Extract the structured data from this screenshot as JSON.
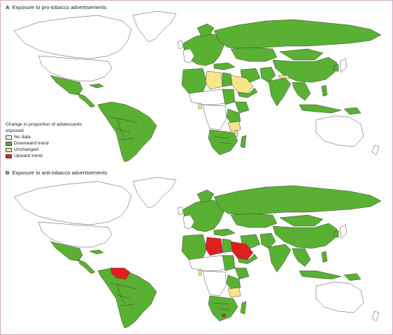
{
  "panels": [
    {
      "letter": "A",
      "title": "Exposure to pro-tobacco advertisements"
    },
    {
      "letter": "B",
      "title": "Exposure to anti-tobacco advertisements"
    }
  ],
  "legend": {
    "title": "Change in proportion of adolescents exposed",
    "items": [
      {
        "label": "No data",
        "color": "#ffffff"
      },
      {
        "label": "Downward trend",
        "color": "#5ab032"
      },
      {
        "label": "Unchanged",
        "color": "#f5e68a"
      },
      {
        "label": "Upward trend",
        "color": "#e02020"
      }
    ]
  },
  "map_data": {
    "pro_tobacco": {
      "upward_trend": [],
      "unchanged": [
        "Libya",
        "Saudi Arabia",
        "Nepal",
        "Tanzania",
        "Malawi",
        "Togo"
      ],
      "downward_trend": [
        "Russia",
        "Kazakhstan",
        "Mongolia",
        "China",
        "India",
        "Pakistan",
        "Afghanistan",
        "Iran",
        "Turkey",
        "Egypt",
        "Algeria",
        "Morocco",
        "Tunisia",
        "Mauritania",
        "Mali",
        "Niger",
        "Sudan",
        "Ethiopia",
        "Kenya",
        "Uganda",
        "Zambia",
        "Mozambique",
        "Zimbabwe",
        "South Africa",
        "Botswana",
        "Namibia",
        "Mexico",
        "Guatemala",
        "Honduras",
        "Nicaragua",
        "Panama",
        "Colombia",
        "Venezuela",
        "Peru",
        "Bolivia",
        "Brazil",
        "Paraguay",
        "Argentina",
        "Chile",
        "Uruguay",
        "Thailand",
        "Vietnam",
        "Philippines",
        "Indonesia",
        "Malaysia",
        "Papua New Guinea",
        "Ukraine",
        "Belarus",
        "Poland",
        "Europe"
      ]
    },
    "anti_tobacco": {
      "upward_trend": [
        "Libya",
        "Saudi Arabia",
        "Venezuela",
        "Lesotho"
      ],
      "unchanged": [
        "Tanzania",
        "Togo"
      ],
      "downward_trend": [
        "Russia",
        "Kazakhstan",
        "Mongolia",
        "China",
        "Iran",
        "Afghanistan",
        "Pakistan",
        "India",
        "Turkey",
        "Egypt",
        "Algeria",
        "Morocco",
        "Tunisia",
        "Mauritania",
        "Sudan",
        "Ethiopia",
        "Kenya",
        "Uganda",
        "Zambia",
        "Mozambique",
        "Zimbabwe",
        "South Africa",
        "Botswana",
        "Namibia",
        "Mexico",
        "Guatemala",
        "Honduras",
        "Nicaragua",
        "Panama",
        "Colombia",
        "Peru",
        "Bolivia",
        "Brazil",
        "Paraguay",
        "Argentina",
        "Chile",
        "Uruguay",
        "Thailand",
        "Vietnam",
        "Philippines",
        "Indonesia",
        "Malaysia",
        "Papua New Guinea",
        "Ukraine",
        "Belarus",
        "Poland",
        "Europe"
      ]
    }
  }
}
